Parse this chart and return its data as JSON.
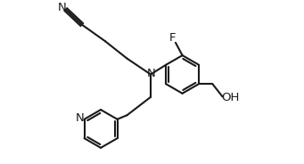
{
  "background_color": "#ffffff",
  "line_color": "#1a1a1a",
  "line_width": 1.5,
  "font_size": 9.5,
  "fig_width": 3.41,
  "fig_height": 1.84,
  "dpi": 100,
  "xlim": [
    0.3,
    5.2
  ],
  "ylim": [
    0.0,
    3.5
  ]
}
